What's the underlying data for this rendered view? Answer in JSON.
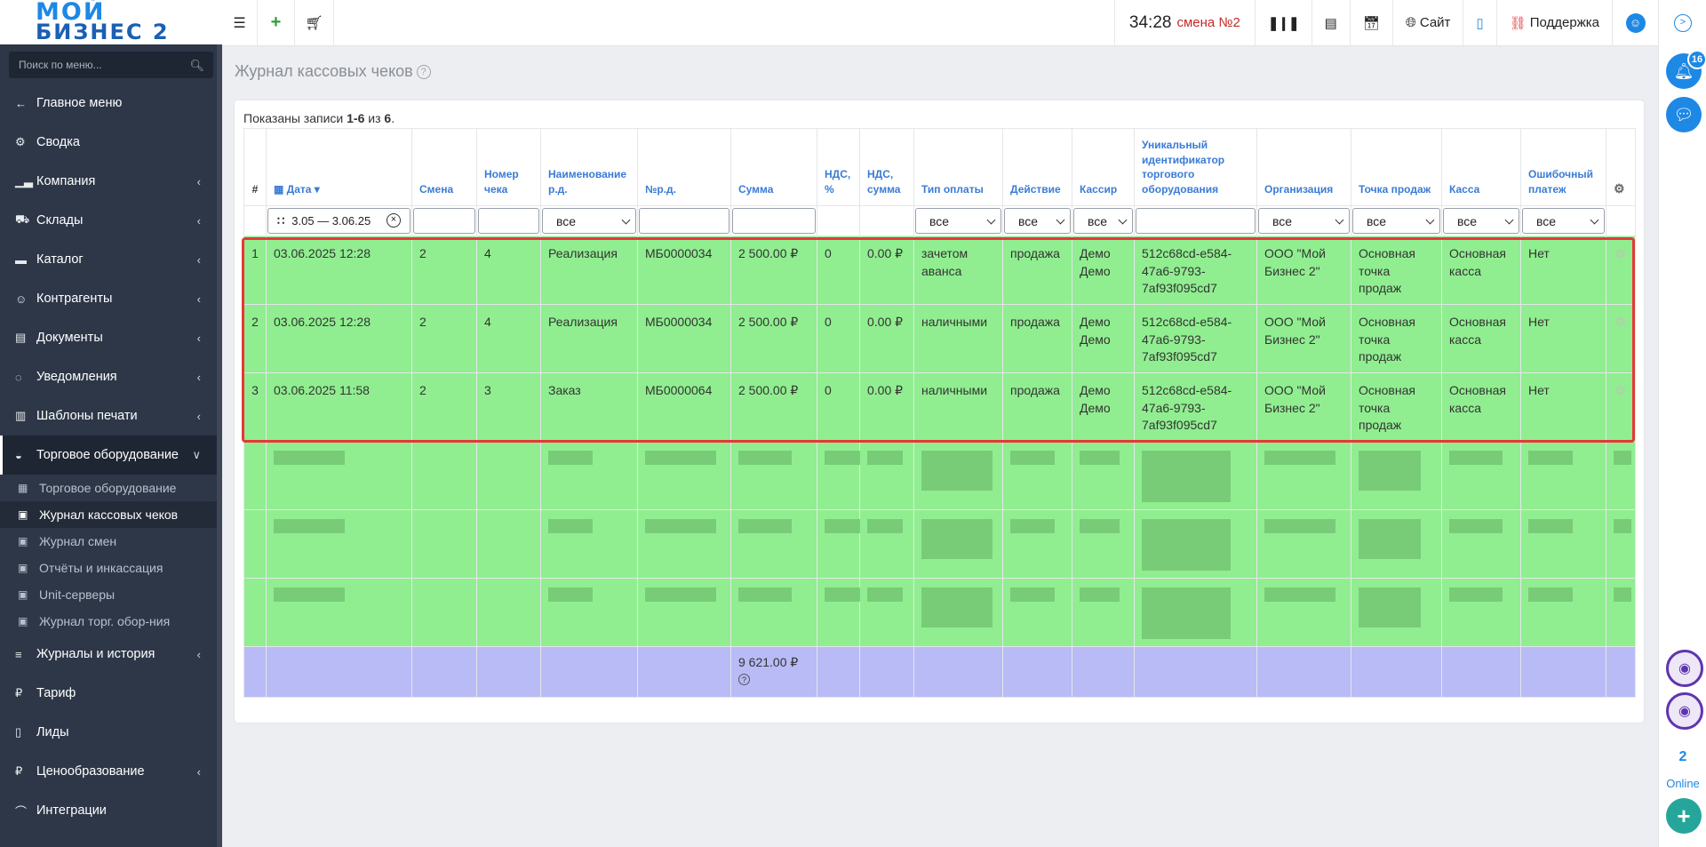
{
  "logo": {
    "line1": "МОЙ",
    "line2": "БИЗНЕС 2"
  },
  "sidebar": {
    "search_placeholder": "Поиск по меню...",
    "items": [
      {
        "label": "Главное меню",
        "icon": "arrow-left-icon",
        "chevron": false
      },
      {
        "label": "Сводка",
        "icon": "gear-icon",
        "chevron": false
      },
      {
        "label": "Компания",
        "icon": "chart-icon",
        "chevron": true
      },
      {
        "label": "Склады",
        "icon": "truck-icon",
        "chevron": true
      },
      {
        "label": "Каталог",
        "icon": "folder-icon",
        "chevron": true
      },
      {
        "label": "Контрагенты",
        "icon": "users-icon",
        "chevron": true
      },
      {
        "label": "Документы",
        "icon": "document-icon",
        "chevron": true
      },
      {
        "label": "Уведомления",
        "icon": "chat-icon",
        "chevron": true
      },
      {
        "label": "Шаблоны печати",
        "icon": "template-icon",
        "chevron": true
      },
      {
        "label": "Торговое оборудование",
        "icon": "register-icon",
        "chevron": true,
        "active": true
      }
    ],
    "subitems": [
      {
        "label": "Торговое оборудование",
        "icon": "calculator-icon"
      },
      {
        "label": "Журнал кассовых чеков",
        "icon": "money-icon",
        "active": true
      },
      {
        "label": "Журнал смен",
        "icon": "money-icon"
      },
      {
        "label": "Отчёты и инкассация",
        "icon": "money-icon"
      },
      {
        "label": "Unit-серверы",
        "icon": "money-icon"
      },
      {
        "label": "Журнал торг. обор-ния",
        "icon": "money-icon"
      }
    ],
    "items_after": [
      {
        "label": "Журналы и история",
        "icon": "list-icon",
        "chevron": true
      },
      {
        "label": "Тариф",
        "icon": "ruble-icon",
        "chevron": false
      },
      {
        "label": "Лиды",
        "icon": "lead-icon",
        "chevron": false
      },
      {
        "label": "Ценообразование",
        "icon": "ruble-icon",
        "chevron": true
      },
      {
        "label": "Интеграции",
        "icon": "paperclip-icon",
        "chevron": false
      }
    ]
  },
  "topbar": {
    "clock": "34:28",
    "shift": "смена №2",
    "site_label": "Сайт",
    "support_label": "Поддержка"
  },
  "rightpanel": {
    "notifications_count": "16",
    "online_count": "2",
    "online_label": "Online"
  },
  "page": {
    "title": "Журнал кассовых чеков",
    "summary_prefix": "Показаны записи ",
    "summary_range": "1-6",
    "summary_mid": " из ",
    "summary_total": "6",
    "summary_suffix": "."
  },
  "table": {
    "columns": [
      "#",
      "Дата",
      "Смена",
      "Номер чека",
      "Наименование р.д.",
      "№р.д.",
      "Сумма",
      "НДС, %",
      "НДС, сумма",
      "Тип оплаты",
      "Действие",
      "Кассир",
      "Уникальный идентификатор торгового оборудования",
      "Организация",
      "Точка продаж",
      "Касса",
      "Ошибочный платеж"
    ],
    "filters": {
      "date_range": "3.05 — 3.06.25",
      "all": "все"
    },
    "rows": [
      {
        "n": "1",
        "date": "03.06.2025 12:28",
        "shift": "2",
        "check_no": "4",
        "doc_name": "Реализация",
        "doc_no": "МБ0000034",
        "sum": "2 500.00 ₽",
        "vat_pct": "0",
        "vat_sum": "0.00 ₽",
        "pay_type": "зачетом аванса",
        "action": "продажа",
        "cashier": "Демо Демо",
        "device_id": "512c68cd-e584-47a6-9793-7af93f095cd7",
        "org": "ООО \"Мой Бизнес 2\"",
        "point": "Основная точка продаж",
        "kassa": "Основная касса",
        "error": "Нет"
      },
      {
        "n": "2",
        "date": "03.06.2025 12:28",
        "shift": "2",
        "check_no": "4",
        "doc_name": "Реализация",
        "doc_no": "МБ0000034",
        "sum": "2 500.00 ₽",
        "vat_pct": "0",
        "vat_sum": "0.00 ₽",
        "pay_type": "наличными",
        "action": "продажа",
        "cashier": "Демо Демо",
        "device_id": "512c68cd-e584-47a6-9793-7af93f095cd7",
        "org": "ООО \"Мой Бизнес 2\"",
        "point": "Основная точка продаж",
        "kassa": "Основная касса",
        "error": "Нет"
      },
      {
        "n": "3",
        "date": "03.06.2025 11:58",
        "shift": "2",
        "check_no": "3",
        "doc_name": "Заказ",
        "doc_no": "МБ0000064",
        "sum": "2 500.00 ₽",
        "vat_pct": "0",
        "vat_sum": "0.00 ₽",
        "pay_type": "наличными",
        "action": "продажа",
        "cashier": "Демо Демо",
        "device_id": "512c68cd-e584-47a6-9793-7af93f095cd7",
        "org": "ООО \"Мой Бизнес 2\"",
        "point": "Основная точка продаж",
        "kassa": "Основная касса",
        "error": "Нет"
      }
    ],
    "total_sum": "9 621.00 ₽"
  }
}
